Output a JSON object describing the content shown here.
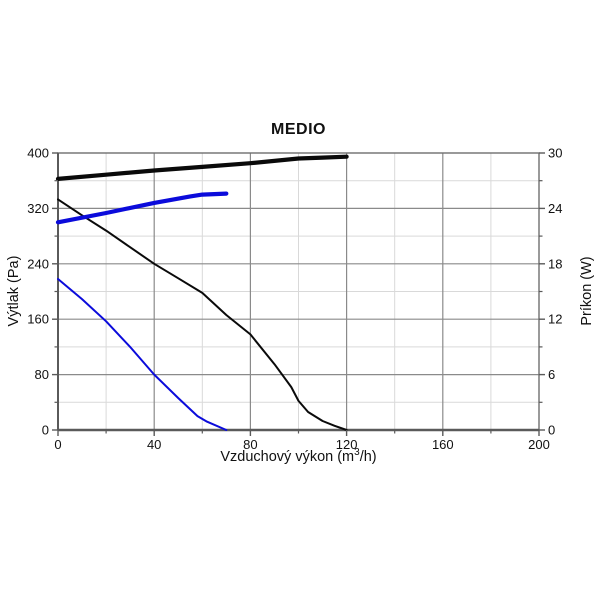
{
  "chart_data": {
    "type": "line",
    "title": "MEDIO",
    "xlabel": {
      "text": "Vzduchový výkon (m³/h)",
      "prefix": "Vzduchový výkon (m",
      "sup": "3",
      "suffix": "/h)"
    },
    "ylabel_left": "Výtlak (Pa)",
    "ylabel_right": "Príkon (W)",
    "x_axis": {
      "min": 0,
      "max": 200,
      "major_ticks": [
        0,
        40,
        80,
        120,
        160,
        200
      ],
      "minor_ticks": [
        20,
        60,
        100,
        140,
        180
      ]
    },
    "y_left": {
      "min": 0,
      "max": 400,
      "major_ticks": [
        0,
        80,
        160,
        240,
        320,
        400
      ],
      "minor_ticks": [
        40,
        120,
        200,
        280,
        360
      ]
    },
    "y_right": {
      "min": 0,
      "max": 30,
      "major_ticks": [
        0,
        6,
        12,
        18,
        24,
        30
      ],
      "minor_ticks": [
        3,
        9,
        15,
        21,
        27
      ]
    },
    "grid": {
      "major_color": "#8a8a8a",
      "minor_color": "#d9d9d9",
      "frame_color": "#6e6e6e",
      "axis_color": "#5a5a5a"
    },
    "colors": {
      "black_curve": "#0a0a0a",
      "blue_curve": "#0b0bdb"
    },
    "series": [
      {
        "name": "pressure-curve-high-speed",
        "axis": "left",
        "color": "#0a0a0a",
        "width": 2,
        "points": [
          [
            0,
            333
          ],
          [
            10,
            310
          ],
          [
            20,
            288
          ],
          [
            30,
            264
          ],
          [
            40,
            240
          ],
          [
            50,
            219
          ],
          [
            60,
            198
          ],
          [
            70,
            166
          ],
          [
            80,
            138
          ],
          [
            90,
            95
          ],
          [
            97,
            62
          ],
          [
            100,
            42
          ],
          [
            104,
            26
          ],
          [
            110,
            13
          ],
          [
            115,
            6
          ],
          [
            120,
            0
          ]
        ]
      },
      {
        "name": "pressure-curve-low-speed",
        "axis": "left",
        "color": "#0b0bdb",
        "width": 2,
        "points": [
          [
            0,
            218
          ],
          [
            10,
            189
          ],
          [
            20,
            157
          ],
          [
            30,
            120
          ],
          [
            40,
            80
          ],
          [
            50,
            46
          ],
          [
            58,
            20
          ],
          [
            62,
            12
          ],
          [
            70,
            0
          ]
        ]
      },
      {
        "name": "power-curve-high-speed",
        "axis": "right",
        "color": "#0a0a0a",
        "width": 4.2,
        "points": [
          [
            0,
            27.2
          ],
          [
            20,
            27.65
          ],
          [
            40,
            28.1
          ],
          [
            60,
            28.5
          ],
          [
            80,
            28.9
          ],
          [
            100,
            29.4
          ],
          [
            110,
            29.5
          ],
          [
            120,
            29.6
          ]
        ]
      },
      {
        "name": "power-curve-low-speed",
        "axis": "right",
        "color": "#0b0bdb",
        "width": 4.2,
        "points": [
          [
            0,
            22.5
          ],
          [
            20,
            23.5
          ],
          [
            40,
            24.6
          ],
          [
            55,
            25.3
          ],
          [
            60,
            25.5
          ],
          [
            70,
            25.6
          ]
        ]
      }
    ]
  }
}
